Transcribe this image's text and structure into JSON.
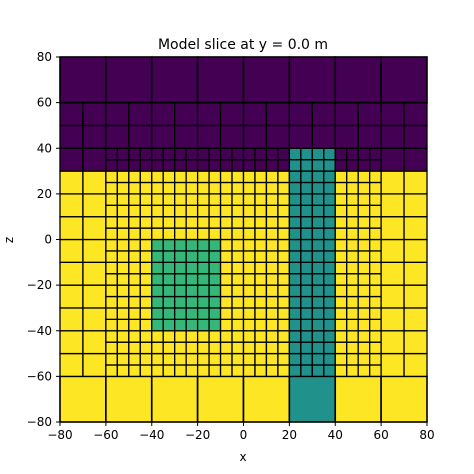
{
  "chart_data": {
    "type": "heatmap",
    "title": "Model slice at y = 0.0 m",
    "xlabel": "x",
    "ylabel": "z",
    "xlim": [
      -80,
      80
    ],
    "ylim": [
      -80,
      80
    ],
    "xticks": [
      "−80",
      "−60",
      "−40",
      "−20",
      "0",
      "20",
      "40",
      "60",
      "80"
    ],
    "yticks": [
      "−80",
      "−60",
      "−40",
      "−20",
      "0",
      "20",
      "40",
      "60",
      "80"
    ],
    "colors": {
      "air": "#440154",
      "background": "#fde725",
      "block": "#35b779",
      "pipe": "#21918c",
      "grid": "#000000"
    },
    "regions": [
      {
        "name": "air",
        "x": [
          -80,
          80
        ],
        "z": [
          30,
          80
        ]
      },
      {
        "name": "background",
        "x": [
          -80,
          80
        ],
        "z": [
          -80,
          30
        ]
      },
      {
        "name": "block",
        "x": [
          -40,
          -10
        ],
        "z": [
          -40,
          0
        ]
      },
      {
        "name": "pipe",
        "x": [
          20,
          40
        ],
        "z": [
          -80,
          40
        ]
      }
    ],
    "mesh": {
      "coarse": 20,
      "medium": 10,
      "fine": 5,
      "medium_zone": {
        "x": [
          -80,
          80
        ],
        "z": [
          -60,
          50
        ]
      },
      "fine_zone": {
        "x": [
          -60,
          60
        ],
        "z": [
          -50,
          40
        ]
      }
    }
  }
}
